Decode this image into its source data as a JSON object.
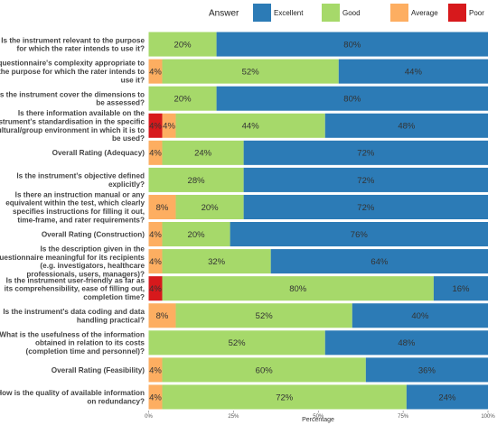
{
  "chart_data": {
    "type": "bar",
    "orientation": "horizontal",
    "stacked": true,
    "xlabel": "Percentage",
    "xlim": [
      0,
      100
    ],
    "xticks": [
      "0%",
      "25%",
      "50%",
      "75%",
      "100%"
    ],
    "legend": {
      "title": "Answer",
      "placement": "top-right",
      "entries": [
        "Excellent",
        "Good",
        "Average",
        "Poor"
      ]
    },
    "colors": {
      "Poor": "#d7191c",
      "Average": "#fdae61",
      "Good": "#a6d96a",
      "Excellent": "#2c7bb6"
    },
    "stack_order": [
      "Poor",
      "Average",
      "Good",
      "Excellent"
    ],
    "categories": [
      [
        "Is the instrument relevant to the purpose",
        "for which the rater intends to use it?"
      ],
      [
        "Is questionnaire's complexity appropriate to",
        "the purpose for which the rater intends to",
        "use it?"
      ],
      [
        "Does the instrument cover the dimensions to",
        "be assessed?"
      ],
      [
        "Is there information available on the",
        "instrument's standardisation in the specific",
        "cultural/group environment in which it is to",
        "be used?"
      ],
      [
        "Overall Rating (Adequacy)"
      ],
      [
        "Is the instrument's objective defined",
        "explicitly?"
      ],
      [
        "Is there an instruction manual or any",
        "equivalent within the test, which clearly",
        "specifies instructions for filling it out,",
        "time-frame, and rater requirements?"
      ],
      [
        "Overall Rating (Construction)"
      ],
      [
        "Is the description given in the",
        "questionnaire meaningful for its recipients",
        "(e.g. investigators, healthcare",
        "professionals, users, managers)?"
      ],
      [
        "Is the instrument user-friendly as far as",
        "its comprehensibility, ease of filling out,",
        "completion time?"
      ],
      [
        "Is the instrument's data coding and data",
        "handling practical?"
      ],
      [
        "What is the usefulness of the information",
        "obtained in relation to its costs",
        "(completion time and personnel)?"
      ],
      [
        "Overall Rating (Feasibility)"
      ],
      [
        "How is the quality of available information",
        "on redundancy?"
      ]
    ],
    "series": [
      {
        "name": "Poor",
        "values": [
          0,
          0,
          0,
          4,
          0,
          0,
          0,
          0,
          0,
          4,
          0,
          0,
          0,
          0
        ]
      },
      {
        "name": "Average",
        "values": [
          0,
          4,
          0,
          4,
          4,
          0,
          8,
          4,
          4,
          0,
          8,
          0,
          4,
          4
        ]
      },
      {
        "name": "Good",
        "values": [
          20,
          52,
          20,
          44,
          24,
          28,
          20,
          20,
          32,
          80,
          52,
          52,
          60,
          72
        ]
      },
      {
        "name": "Excellent",
        "values": [
          80,
          44,
          80,
          48,
          72,
          72,
          72,
          76,
          64,
          16,
          40,
          48,
          36,
          24
        ]
      }
    ],
    "data_labels": [
      {
        "Good": "20%",
        "Excellent": "80%"
      },
      {
        "Average": "4%",
        "Good": "52%",
        "Excellent": "44%"
      },
      {
        "Good": "20%",
        "Excellent": "80%"
      },
      {
        "Poor": "4%",
        "Average": "4%",
        "Good": "44%",
        "Excellent": "48%"
      },
      {
        "Average": "4%",
        "Good": "24%",
        "Excellent": "72%"
      },
      {
        "Good": "28%",
        "Excellent": "72%"
      },
      {
        "Average": "8%",
        "Good": "20%",
        "Excellent": "72%"
      },
      {
        "Average": "4%",
        "Good": "20%",
        "Excellent": "76%"
      },
      {
        "Average": "4%",
        "Good": "32%",
        "Excellent": "64%"
      },
      {
        "Poor": "4%",
        "Good": "80%",
        "Excellent": "16%"
      },
      {
        "Average": "8%",
        "Good": "52%",
        "Excellent": "40%"
      },
      {
        "Good": "52%",
        "Excellent": "48%"
      },
      {
        "Average": "4%",
        "Good": "60%",
        "Excellent": "36%"
      },
      {
        "Average": "4%",
        "Good": "72%",
        "Excellent": "24%"
      }
    ]
  }
}
